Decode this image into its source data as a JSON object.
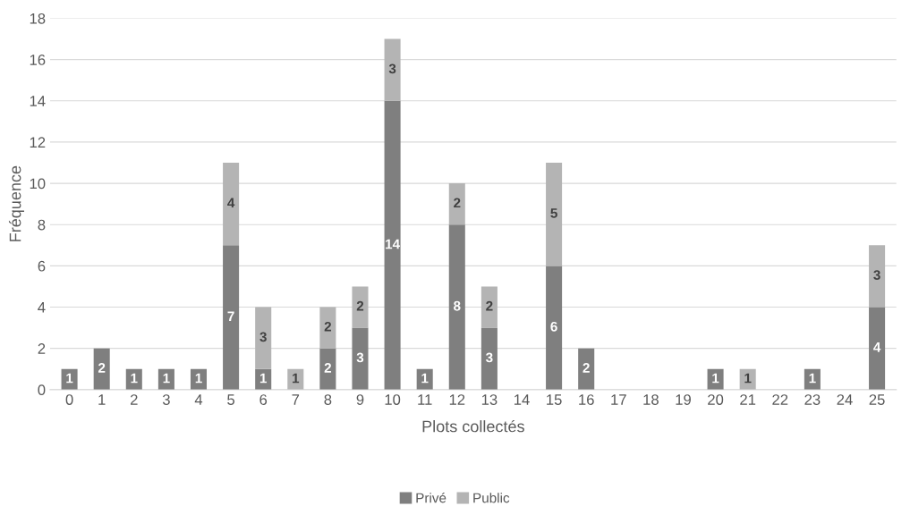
{
  "chart_data": {
    "type": "bar",
    "stacked": true,
    "xlabel": "Plots collectés",
    "ylabel": "Fréquence",
    "categories": [
      "0",
      "1",
      "2",
      "3",
      "4",
      "5",
      "6",
      "7",
      "8",
      "9",
      "10",
      "11",
      "12",
      "13",
      "14",
      "15",
      "16",
      "17",
      "18",
      "19",
      "20",
      "21",
      "22",
      "23",
      "24",
      "25"
    ],
    "series": [
      {
        "name": "Privé",
        "color": "#7f7f7f",
        "values": [
          1,
          2,
          1,
          1,
          1,
          7,
          1,
          0,
          2,
          3,
          14,
          1,
          8,
          3,
          0,
          6,
          2,
          0,
          0,
          0,
          1,
          0,
          0,
          1,
          0,
          4
        ],
        "value_labels": [
          "1",
          "2",
          "1",
          "1",
          "1",
          "7",
          "1",
          null,
          "2",
          "3",
          "14",
          "1",
          "8",
          "3",
          null,
          "6",
          "2",
          null,
          null,
          null,
          "1",
          null,
          null,
          "1",
          null,
          "4"
        ]
      },
      {
        "name": "Public",
        "color": "#b4b4b4",
        "values": [
          0,
          0,
          0,
          0,
          0,
          4,
          3,
          1,
          2,
          2,
          3,
          0,
          2,
          2,
          0,
          5,
          0,
          0,
          0,
          0,
          0,
          1,
          0,
          0,
          0,
          3
        ],
        "value_labels": [
          null,
          null,
          null,
          null,
          null,
          "4",
          "3",
          "1",
          "2",
          "2",
          "3",
          null,
          "2",
          "2",
          null,
          "5",
          null,
          null,
          null,
          null,
          null,
          "1",
          null,
          null,
          null,
          "3"
        ]
      }
    ],
    "ylim": [
      0,
      18
    ],
    "yticks": [
      0,
      2,
      4,
      6,
      8,
      10,
      12,
      14,
      16,
      18
    ],
    "grid": "y",
    "legend": "bottom"
  }
}
